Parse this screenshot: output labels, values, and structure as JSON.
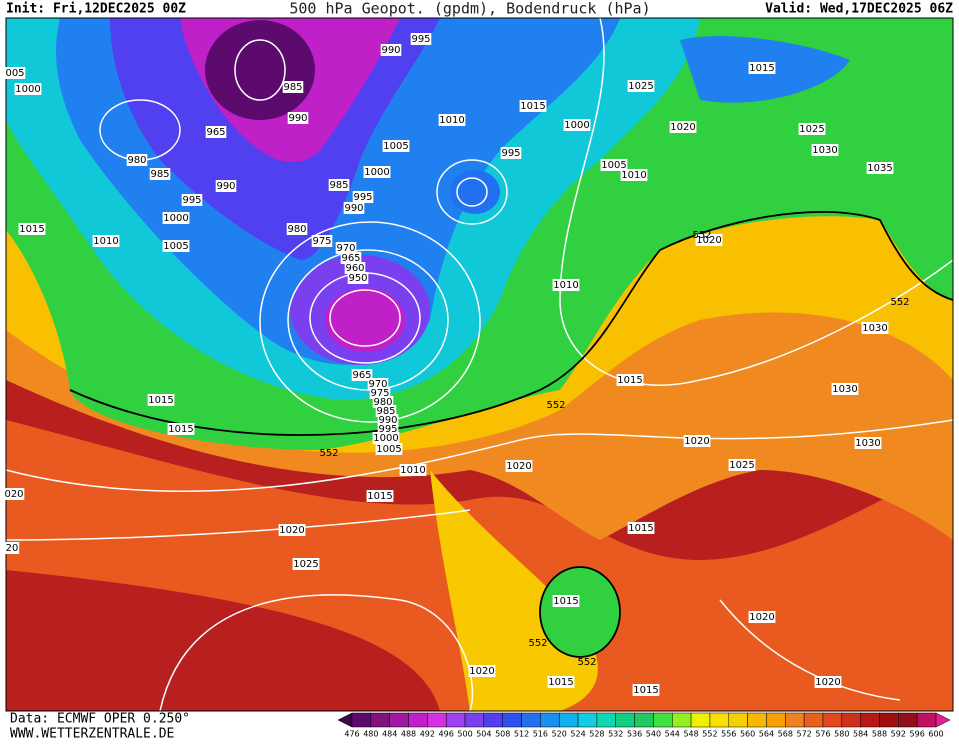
{
  "header": {
    "init": "Init: Fri,12DEC2025 00Z",
    "title": "500 hPa Geopot. (gpdm), Bodendruck (hPa)",
    "valid": "Valid: Wed,17DEC2025 06Z"
  },
  "isobar_labels": [
    "005",
    "1000",
    "985",
    "990",
    "965",
    "980",
    "985",
    "990",
    "995",
    "1000",
    "1015",
    "1010",
    "1005",
    "980",
    "975",
    "970",
    "965",
    "960",
    "950",
    "990",
    "995",
    "1005",
    "1000",
    "985",
    "995",
    "990",
    "1010",
    "1015",
    "1000",
    "995",
    "1005",
    "1010",
    "1025",
    "1015",
    "1020",
    "1025",
    "1030",
    "1035",
    "1020",
    "1010",
    "1015",
    "1015",
    "965",
    "970",
    "975",
    "980",
    "985",
    "990",
    "995",
    "1000",
    "1005",
    "1010",
    "1015",
    "1020",
    "1020",
    "1025",
    "1015",
    "1020",
    "1025",
    "1030",
    "1030",
    "1030",
    "1015",
    "1015",
    "1020",
    "1020",
    "1015",
    "1015",
    "1020",
    "020",
    "20"
  ],
  "contour_labels": [
    "552",
    "552",
    "552",
    "552",
    "552",
    "552"
  ],
  "colorbar": {
    "values": [
      476,
      480,
      484,
      488,
      492,
      496,
      500,
      504,
      508,
      512,
      516,
      520,
      524,
      528,
      532,
      536,
      540,
      544,
      548,
      552,
      556,
      560,
      564,
      568,
      572,
      576,
      580,
      584,
      588,
      592,
      596,
      600
    ],
    "colors": [
      "#3a0a4a",
      "#5c0a6e",
      "#80107e",
      "#a01aa0",
      "#c020c8",
      "#d830e0",
      "#a040f0",
      "#7a40f0",
      "#5040f0",
      "#3050f0",
      "#2070f0",
      "#1890f0",
      "#10b0f0",
      "#10d0e0",
      "#10d8b0",
      "#10d080",
      "#20c860",
      "#40e040",
      "#90f020",
      "#f0f000",
      "#f8e000",
      "#f8d000",
      "#f8b800",
      "#f8a000",
      "#f08020",
      "#e86020",
      "#e04820",
      "#d03020",
      "#b81818",
      "#a01010",
      "#901020",
      "#c01060",
      "#e02090"
    ]
  },
  "footer": {
    "data": "Data: ECMWF OPER 0.250°",
    "site": "WWW.WETTERZENTRALE.DE"
  }
}
